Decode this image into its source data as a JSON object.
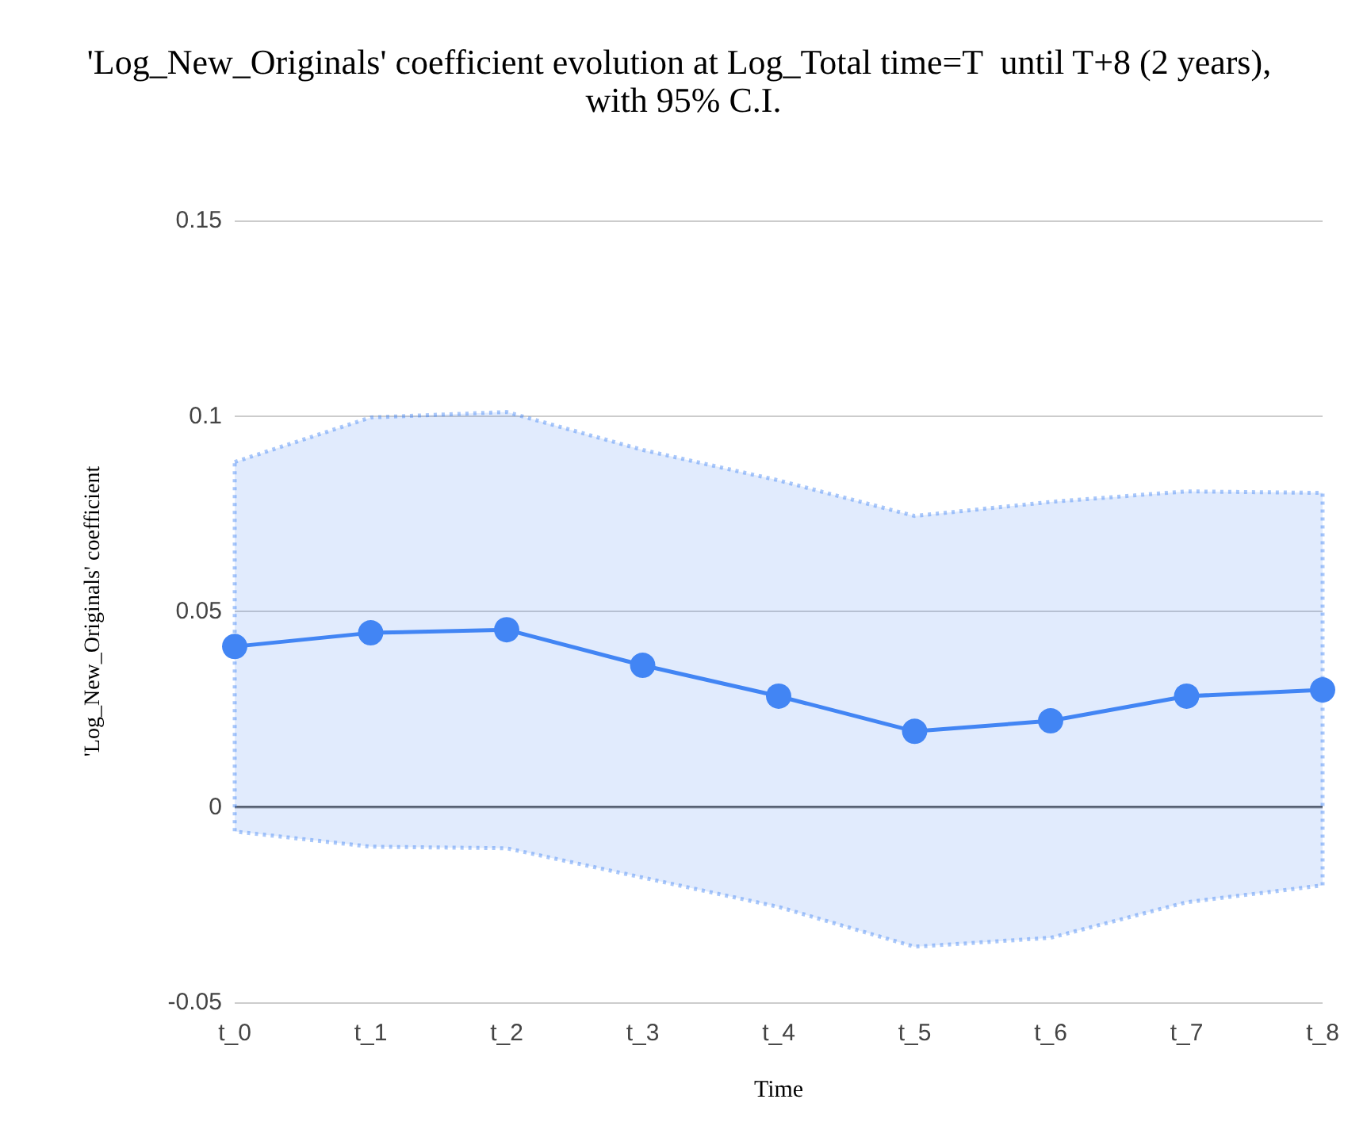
{
  "chart_data": {
    "type": "line",
    "title": "'Log_New_Originals' coefficient evolution at Log_Total time=T  until T+8 (2 years), with 95% C.I.",
    "xlabel": "Time",
    "ylabel": "'Log_New_Originals' coefficient",
    "categories": [
      "t_0",
      "t_1",
      "t_2",
      "t_3",
      "t_4",
      "t_5",
      "t_6",
      "t_7",
      "t_8"
    ],
    "series": [
      {
        "color": "#4285f4",
        "values": [
          0.041,
          0.0445,
          0.0453,
          0.0362,
          0.0283,
          0.0193,
          0.022,
          0.0283,
          0.0299
        ],
        "lower": [
          -0.0063,
          -0.0102,
          -0.0106,
          -0.0181,
          -0.0256,
          -0.0358,
          -0.0335,
          -0.0244,
          -0.0201
        ],
        "upper": [
          0.0882,
          0.0996,
          0.101,
          0.0913,
          0.0835,
          0.0744,
          0.078,
          0.0807,
          0.0803
        ]
      }
    ],
    "ylim": [
      -0.05,
      0.15
    ],
    "yticks": [
      -0.05,
      0,
      0.05,
      0.1,
      0.15
    ],
    "grid": "y",
    "marker": "circle",
    "line_style": "solid"
  }
}
